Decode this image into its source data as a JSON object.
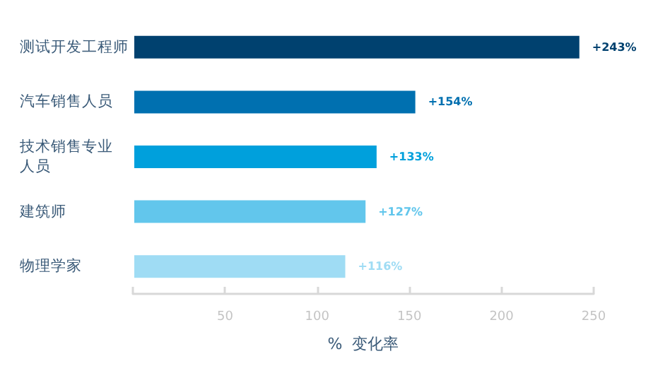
{
  "chart_data": {
    "type": "bar",
    "orientation": "horizontal",
    "xlabel": "%  变化率",
    "categories": [
      "测试开发工程师",
      "汽车销售人员",
      "技术销售专业人员",
      "建筑师",
      "物理学家"
    ],
    "values": [
      243,
      154,
      133,
      127,
      116
    ],
    "colors": [
      "#00416f",
      "#0070b0",
      "#00a0dc",
      "#62c6ec",
      "#9fdcf4"
    ],
    "value_labels": [
      "+243%",
      "+154%",
      "+133%",
      "+127%",
      "+116%"
    ],
    "xlim": [
      0,
      250
    ],
    "xticks": [
      {
        "value": 0,
        "label": null
      },
      50,
      100,
      150,
      200,
      250
    ],
    "grid": false
  }
}
